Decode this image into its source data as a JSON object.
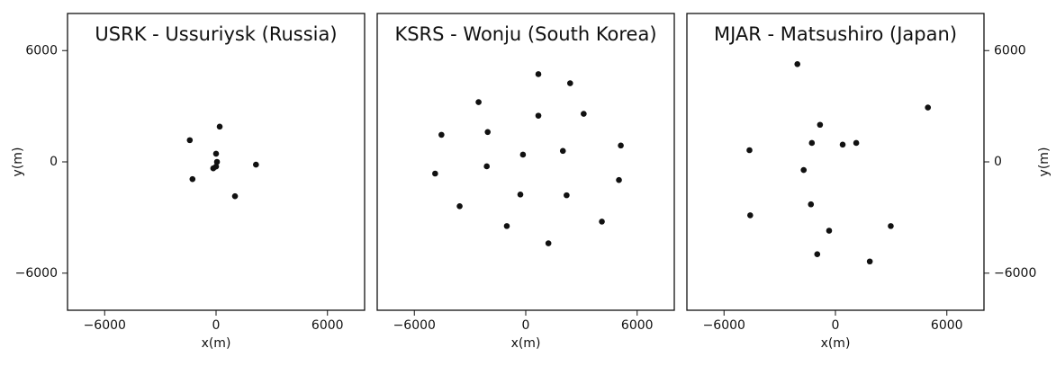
{
  "chart_data": [
    {
      "type": "scatter",
      "title": "USRK - Ussuriysk (Russia)",
      "xlabel": "x(m)",
      "ylabel": "y(m)",
      "yaxis": "left",
      "color": "#111111",
      "x": [
        -1415,
        195,
        0,
        50,
        -150,
        0,
        -1270,
        1020,
        2150
      ],
      "values": [
        1170,
        1900,
        440,
        0,
        -350,
        -250,
        -930,
        -1850,
        -150
      ],
      "xlim": [
        -8000,
        8000
      ],
      "ylim": [
        -8000,
        8000
      ],
      "xticks": [
        {
          "value": -6000,
          "label": "−6000"
        },
        0,
        6000
      ],
      "yticks": [
        {
          "value": -6000,
          "label": "−6000"
        },
        0,
        6000
      ]
    },
    {
      "type": "scatter",
      "title": "KSRS - Wonju (South Korea)",
      "xlabel": "x(m)",
      "color": "#111111",
      "x": [
        680,
        -2540,
        2390,
        -4540,
        -2050,
        680,
        3120,
        5120,
        2000,
        -150,
        -2100,
        -4880,
        -290,
        2200,
        5020,
        -3560,
        -1020,
        1220,
        4100
      ],
      "values": [
        4730,
        3220,
        4240,
        1460,
        1610,
        2490,
        2590,
        880,
        590,
        390,
        -240,
        -630,
        -1760,
        -1800,
        -980,
        -2390,
        -3460,
        -4390,
        -3220
      ],
      "xlim": [
        -8000,
        8000
      ],
      "ylim": [
        -8000,
        8000
      ],
      "xticks": [
        {
          "value": -6000,
          "label": "−6000"
        },
        0,
        6000
      ]
    },
    {
      "type": "scatter",
      "title": "MJAR - Matsushiro (Japan)",
      "xlabel": "x(m)",
      "ylabel": "y(m)",
      "yaxis": "right",
      "color": "#111111",
      "x": [
        -2050,
        4980,
        -830,
        -1270,
        390,
        1120,
        -4630,
        -1710,
        -1320,
        -4590,
        -340,
        2980,
        -980,
        1850
      ],
      "values": [
        5270,
        2930,
        2000,
        1020,
        930,
        1020,
        630,
        -440,
        -2290,
        -2880,
        -3710,
        -3460,
        -4980,
        -5370
      ],
      "xlim": [
        -8000,
        8000
      ],
      "ylim": [
        -8000,
        8000
      ],
      "xticks": [
        {
          "value": -6000,
          "label": "−6000"
        },
        0,
        6000
      ],
      "yticks": [
        {
          "value": -6000,
          "label": "−6000"
        },
        0,
        6000
      ]
    }
  ]
}
